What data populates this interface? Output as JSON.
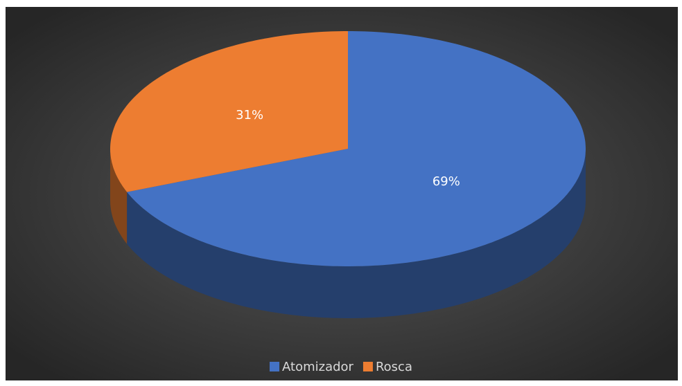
{
  "chart_data": {
    "type": "pie",
    "categories": [
      "Atomizador",
      "Rosca"
    ],
    "values": [
      69,
      31
    ],
    "value_labels": [
      "69%",
      "31%"
    ],
    "colors": [
      "#4472c4",
      "#ed7d31"
    ],
    "legend": "bottom"
  }
}
